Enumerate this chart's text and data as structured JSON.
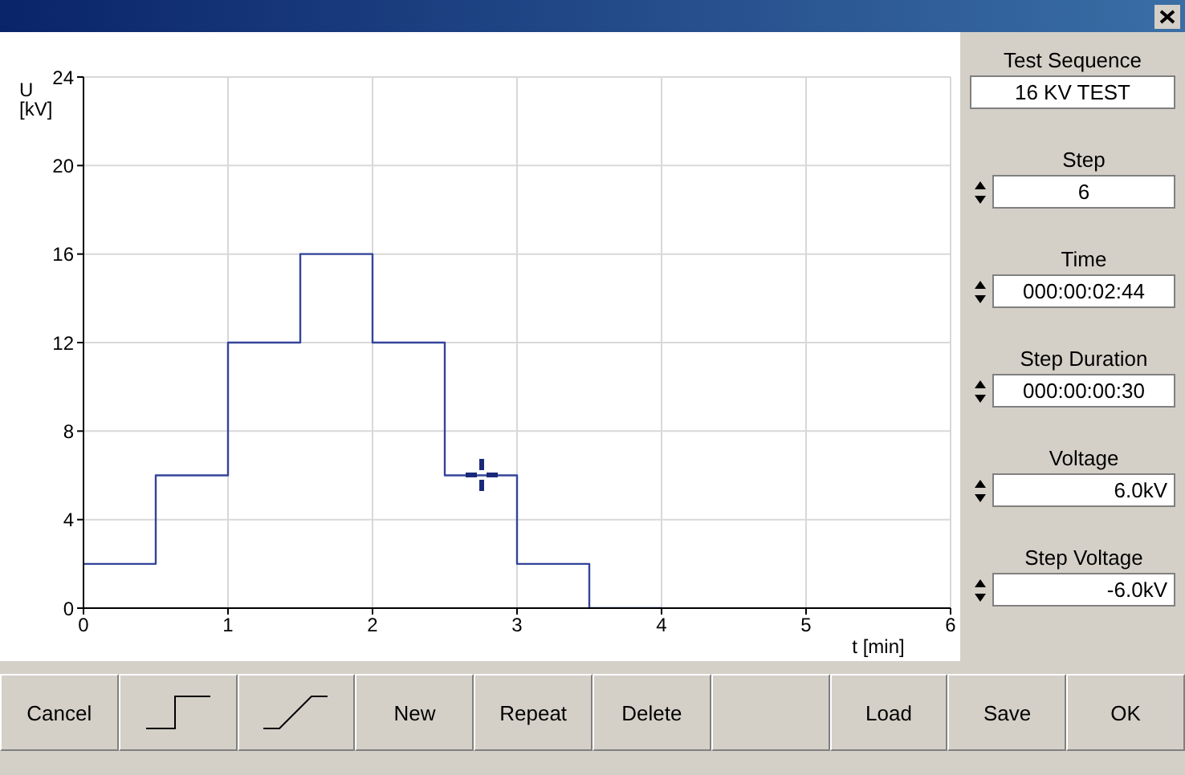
{
  "chart_data": {
    "type": "step",
    "xlabel": "t [min]",
    "ylabel": "U [kV]",
    "x": [
      0,
      0.5,
      1,
      1.5,
      2,
      2.5,
      3,
      3.5,
      4
    ],
    "series": [
      {
        "color": "#33449a",
        "values": [
          2,
          6,
          12,
          16,
          12,
          6,
          2,
          0,
          0
        ]
      }
    ],
    "xlim": [
      0,
      6
    ],
    "xticks": [
      0,
      1,
      2,
      3,
      4,
      5,
      6
    ],
    "ylim": [
      0,
      24
    ],
    "yticks": [
      0,
      4,
      8,
      12,
      16,
      20,
      24
    ],
    "grid": true,
    "marker": "none",
    "line_style": "solid",
    "annotations": [
      "Test Sequence",
      "16 KV TEST",
      "Step",
      "6",
      "Time",
      "000:00:02:44",
      "Step Duration",
      "000:00:00:30",
      "Voltage",
      "6.0kV",
      "Step Voltage",
      "-6.0kV",
      "Cancel",
      "New",
      "Repeat",
      "Delete",
      "Load",
      "Save",
      "OK"
    ]
  }
}
